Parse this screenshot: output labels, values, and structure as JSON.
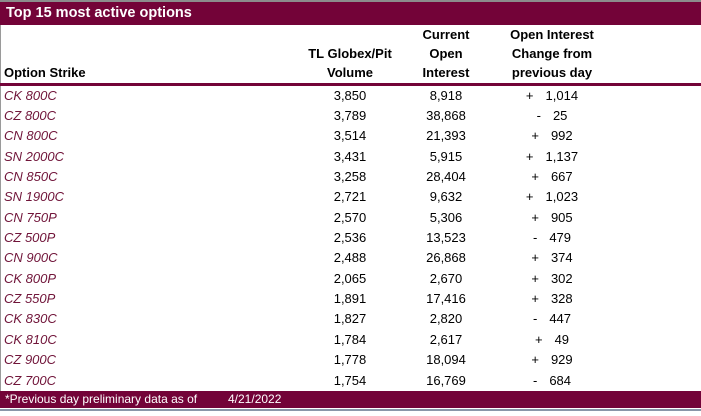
{
  "title": "Top 15 most active options",
  "table": {
    "columns": {
      "strike": [
        "Option Strike"
      ],
      "volume": [
        "TL Globex/Pit",
        "Volume"
      ],
      "open_interest": [
        "Current",
        "Open",
        "Interest"
      ],
      "change": [
        "Open Interest",
        "Change from",
        "previous day"
      ]
    },
    "rows": [
      {
        "strike": "CK 800C",
        "volume": "3,850",
        "open_interest": "8,918",
        "change_sign": "+",
        "change_value": "1,014"
      },
      {
        "strike": "CZ 800C",
        "volume": "3,789",
        "open_interest": "38,868",
        "change_sign": "-",
        "change_value": "25"
      },
      {
        "strike": "CN 800C",
        "volume": "3,514",
        "open_interest": "21,393",
        "change_sign": "+",
        "change_value": "992"
      },
      {
        "strike": "SN 2000C",
        "volume": "3,431",
        "open_interest": "5,915",
        "change_sign": "+",
        "change_value": "1,137"
      },
      {
        "strike": "CN 850C",
        "volume": "3,258",
        "open_interest": "28,404",
        "change_sign": "+",
        "change_value": "667"
      },
      {
        "strike": "SN 1900C",
        "volume": "2,721",
        "open_interest": "9,632",
        "change_sign": "+",
        "change_value": "1,023"
      },
      {
        "strike": "CN 750P",
        "volume": "2,570",
        "open_interest": "5,306",
        "change_sign": "+",
        "change_value": "905"
      },
      {
        "strike": "CZ 500P",
        "volume": "2,536",
        "open_interest": "13,523",
        "change_sign": "-",
        "change_value": "479"
      },
      {
        "strike": "CN 900C",
        "volume": "2,488",
        "open_interest": "26,868",
        "change_sign": "+",
        "change_value": "374"
      },
      {
        "strike": "CK 800P",
        "volume": "2,065",
        "open_interest": "2,670",
        "change_sign": "+",
        "change_value": "302"
      },
      {
        "strike": "CZ 550P",
        "volume": "1,891",
        "open_interest": "17,416",
        "change_sign": "+",
        "change_value": "328"
      },
      {
        "strike": "CK 830C",
        "volume": "1,827",
        "open_interest": "2,820",
        "change_sign": "-",
        "change_value": "447"
      },
      {
        "strike": "CK 810C",
        "volume": "1,784",
        "open_interest": "2,617",
        "change_sign": "+",
        "change_value": "49"
      },
      {
        "strike": "CZ 900C",
        "volume": "1,778",
        "open_interest": "18,094",
        "change_sign": "+",
        "change_value": "929"
      },
      {
        "strike": "CZ 700C",
        "volume": "1,754",
        "open_interest": "16,769",
        "change_sign": "-",
        "change_value": "684"
      }
    ]
  },
  "footer": {
    "note": "*Previous day preliminary data as of",
    "date": "4/21/2022"
  },
  "colors": {
    "maroon": "#730338",
    "strike_text": "#701439",
    "top_line": "#8c8c8c",
    "bottom_line": "#8a96a8"
  }
}
